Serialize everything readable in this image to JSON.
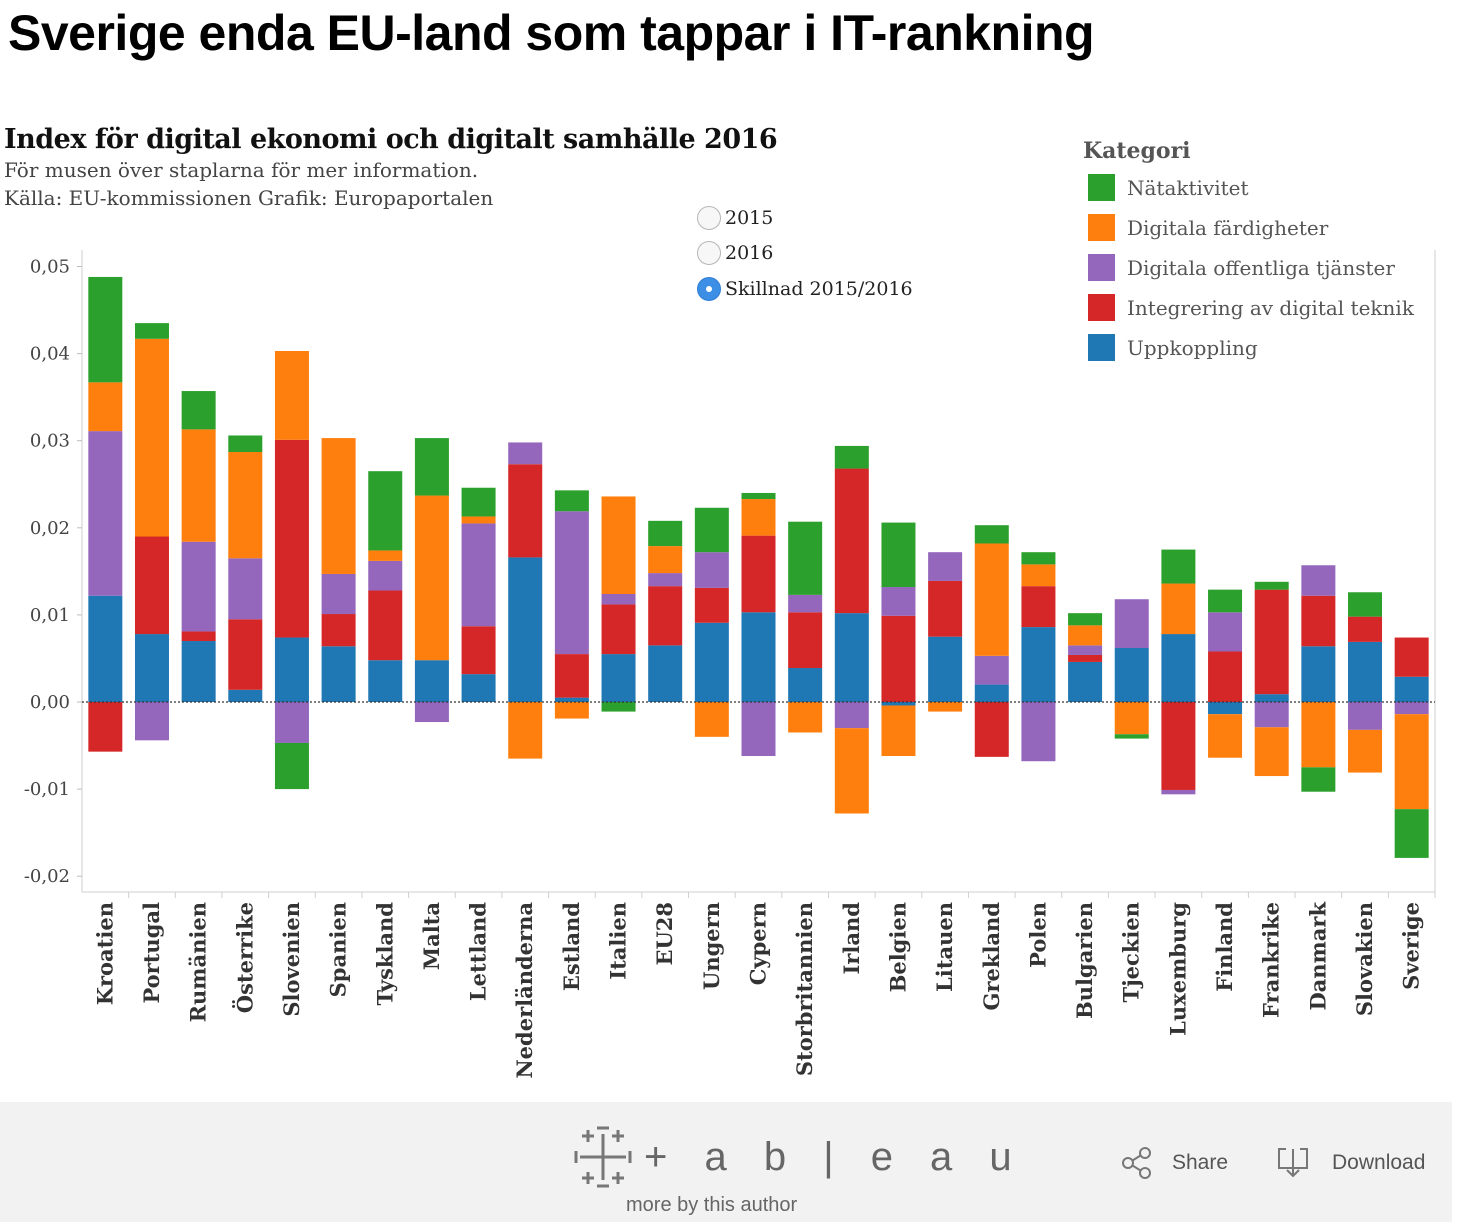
{
  "headline": "Sverige enda EU-land som tappar i IT-rankning",
  "title": "Index för digital ekonomi och digitalt samhälle 2016",
  "subtitle1": "För musen över staplarna för mer information.",
  "subtitle2": "Källa: EU-kommissionen Grafik: Europaportalen",
  "year_options": [
    {
      "label": "2015",
      "selected": false
    },
    {
      "label": "2016",
      "selected": false
    },
    {
      "label": "Skillnad 2015/2016",
      "selected": true
    }
  ],
  "legend": {
    "title": "Kategori",
    "items": [
      {
        "label": "Nätaktivitet",
        "color": "#2ca02c"
      },
      {
        "label": "Digitala färdigheter",
        "color": "#ff7f0e"
      },
      {
        "label": "Digitala offentliga tjänster",
        "color": "#9467bd"
      },
      {
        "label": "Integrering av digital teknik",
        "color": "#d62728"
      },
      {
        "label": "Uppkoppling",
        "color": "#1f77b4"
      }
    ]
  },
  "chart_data": {
    "type": "bar",
    "stacked": true,
    "ylim": [
      -0.02,
      0.05
    ],
    "y_ticks": [
      "0,05",
      "0,04",
      "0,03",
      "0,02",
      "0,01",
      "0,00",
      "-0,01",
      "-0,02"
    ],
    "categories": [
      "Kroatien",
      "Portugal",
      "Rumänien",
      "Österrike",
      "Slovenien",
      "Spanien",
      "Tyskland",
      "Malta",
      "Lettland",
      "Nederländerna",
      "Estland",
      "Italien",
      "EU28",
      "Ungern",
      "Cypern",
      "Storbritannien",
      "Irland",
      "Belgien",
      "Litauen",
      "Grekland",
      "Polen",
      "Bulgarien",
      "Tjeckien",
      "Luxemburg",
      "Finland",
      "Frankrike",
      "Danmark",
      "Slovakien",
      "Sverige"
    ],
    "series": [
      {
        "name": "Uppkoppling",
        "color": "#1f77b4",
        "values": [
          0.0122,
          0.0078,
          0.007,
          0.0014,
          0.0074,
          0.0064,
          0.0048,
          0.0048,
          0.0032,
          0.0166,
          0.0005,
          0.0055,
          0.0065,
          0.0091,
          0.0103,
          0.0039,
          0.0102,
          -0.0004,
          0.0075,
          0.002,
          0.0086,
          0.0046,
          0.0062,
          0.0078,
          -0.0014,
          0.0009,
          0.0064,
          0.0069,
          0.0029
        ]
      },
      {
        "name": "Integrering av digital teknik",
        "color": "#d62728",
        "values": [
          -0.0057,
          0.0112,
          0.0011,
          0.0081,
          0.0227,
          0.0037,
          0.008,
          0.0,
          0.0055,
          0.0107,
          0.005,
          0.0057,
          0.0068,
          0.004,
          0.0088,
          0.0064,
          0.0166,
          0.0099,
          0.0064,
          -0.0063,
          0.0047,
          0.0008,
          0.0,
          -0.0101,
          0.0058,
          0.012,
          0.0058,
          0.0029,
          0.0045
        ]
      },
      {
        "name": "Digitala offentliga tjänster",
        "color": "#9467bd",
        "values": [
          0.0189,
          -0.0044,
          0.0103,
          0.007,
          -0.0047,
          0.0046,
          0.0034,
          -0.0023,
          0.0118,
          0.0025,
          0.0164,
          0.0012,
          0.0015,
          0.0041,
          -0.0062,
          0.002,
          -0.003,
          0.0033,
          0.0033,
          0.0033,
          -0.0068,
          0.0011,
          0.0056,
          -0.0005,
          0.0045,
          -0.0029,
          0.0035,
          -0.0032,
          -0.0014
        ]
      },
      {
        "name": "Digitala färdigheter",
        "color": "#ff7f0e",
        "values": [
          0.0056,
          0.0227,
          0.0129,
          0.0122,
          0.0102,
          0.0156,
          0.0012,
          0.0189,
          0.0008,
          -0.0065,
          -0.0019,
          0.0112,
          0.0031,
          -0.004,
          0.0042,
          -0.0035,
          -0.0098,
          -0.0058,
          -0.0011,
          0.0129,
          0.0025,
          0.0023,
          -0.0037,
          0.0058,
          -0.005,
          -0.0056,
          -0.0075,
          -0.0049,
          -0.0109
        ]
      },
      {
        "name": "Nätaktivitet",
        "color": "#2ca02c",
        "values": [
          0.0121,
          0.0018,
          0.0044,
          0.0019,
          -0.0053,
          0.0,
          0.0091,
          0.0066,
          0.0033,
          0.0,
          0.0024,
          -0.0011,
          0.0029,
          0.0051,
          0.0007,
          0.0084,
          0.0026,
          0.0074,
          0.0,
          0.0021,
          0.0014,
          0.0014,
          -0.0005,
          0.0039,
          0.0026,
          0.0009,
          -0.0028,
          0.0028,
          -0.0056
        ]
      }
    ]
  },
  "footer": {
    "brand": "+ a b | e a u",
    "more": "more by this author",
    "share": "Share",
    "download": "Download"
  }
}
